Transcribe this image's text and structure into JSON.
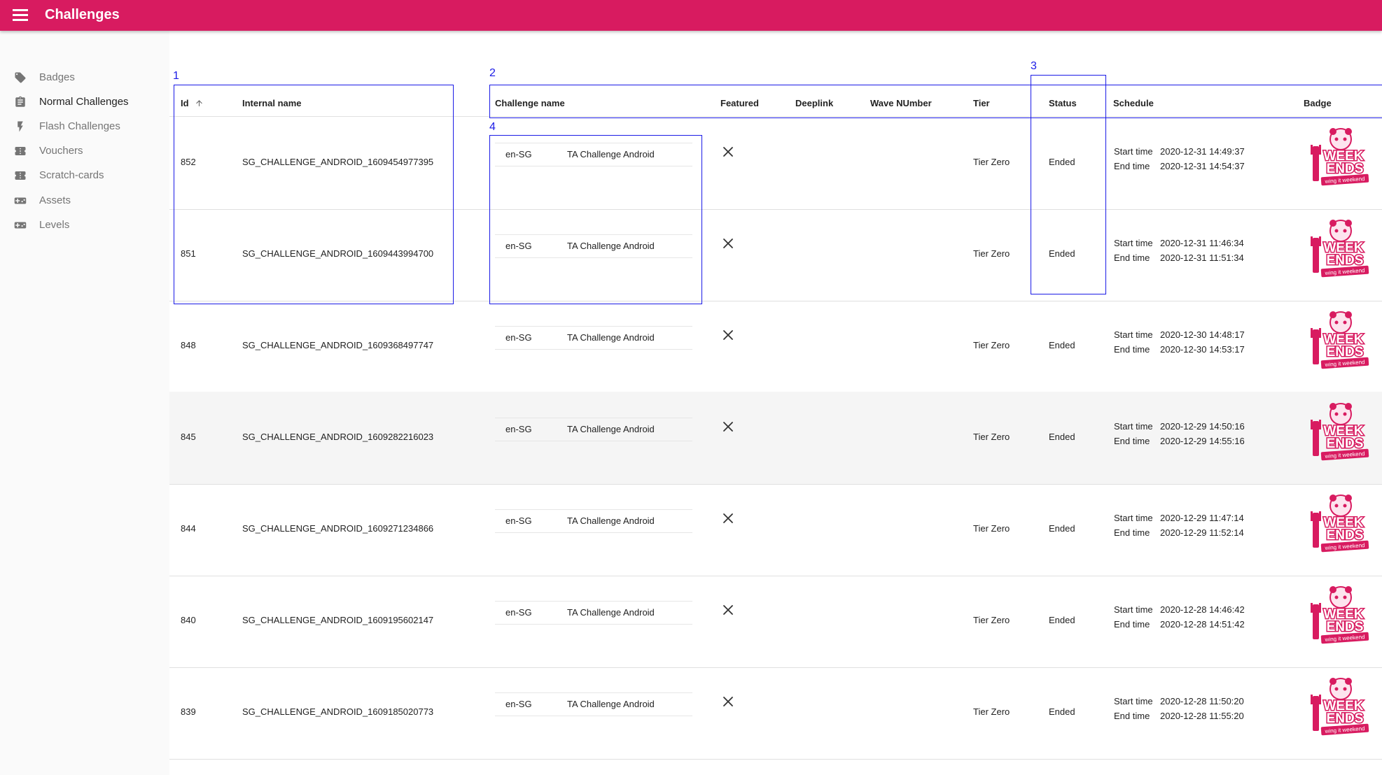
{
  "app": {
    "title": "Challenges"
  },
  "sidebar": {
    "items": [
      {
        "label": "Badges",
        "icon": "tag-icon"
      },
      {
        "label": "Normal Challenges",
        "icon": "clipboard-icon",
        "active": true
      },
      {
        "label": "Flash Challenges",
        "icon": "flash-icon"
      },
      {
        "label": "Vouchers",
        "icon": "ticket-icon"
      },
      {
        "label": "Scratch-cards",
        "icon": "ticket-icon"
      },
      {
        "label": "Assets",
        "icon": "gamepad-icon"
      },
      {
        "label": "Levels",
        "icon": "gamepad-icon"
      }
    ]
  },
  "table": {
    "sort_icon": "arrow-up-icon",
    "columns": {
      "id": "Id",
      "internal_name": "Internal name",
      "challenge_name": "Challenge name",
      "featured": "Featured",
      "deeplink": "Deeplink",
      "wave_number": "Wave NUmber",
      "tier": "Tier",
      "status": "Status",
      "schedule": "Schedule",
      "badge": "Badge"
    },
    "start_label": "Start time",
    "end_label": "End time",
    "rows": [
      {
        "id": "852",
        "internal_name": "SG_CHALLENGE_ANDROID_1609454977395",
        "locale": "en-SG",
        "challenge_name": "TA Challenge Android",
        "featured": false,
        "tier": "Tier Zero",
        "status": "Ended",
        "start": "2020-12-31 14:49:37",
        "end": "2020-12-31 14:54:37"
      },
      {
        "id": "851",
        "internal_name": "SG_CHALLENGE_ANDROID_1609443994700",
        "locale": "en-SG",
        "challenge_name": "TA Challenge Android",
        "featured": false,
        "tier": "Tier Zero",
        "status": "Ended",
        "start": "2020-12-31 11:46:34",
        "end": "2020-12-31 11:51:34"
      },
      {
        "id": "848",
        "internal_name": "SG_CHALLENGE_ANDROID_1609368497747",
        "locale": "en-SG",
        "challenge_name": "TA Challenge Android",
        "featured": false,
        "tier": "Tier Zero",
        "status": "Ended",
        "start": "2020-12-30 14:48:17",
        "end": "2020-12-30 14:53:17"
      },
      {
        "id": "845",
        "internal_name": "SG_CHALLENGE_ANDROID_1609282216023",
        "locale": "en-SG",
        "challenge_name": "TA Challenge Android",
        "featured": false,
        "tier": "Tier Zero",
        "status": "Ended",
        "start": "2020-12-29 14:50:16",
        "end": "2020-12-29 14:55:16"
      },
      {
        "id": "844",
        "internal_name": "SG_CHALLENGE_ANDROID_1609271234866",
        "locale": "en-SG",
        "challenge_name": "TA Challenge Android",
        "featured": false,
        "tier": "Tier Zero",
        "status": "Ended",
        "start": "2020-12-29 11:47:14",
        "end": "2020-12-29 11:52:14"
      },
      {
        "id": "840",
        "internal_name": "SG_CHALLENGE_ANDROID_1609195602147",
        "locale": "en-SG",
        "challenge_name": "TA Challenge Android",
        "featured": false,
        "tier": "Tier Zero",
        "status": "Ended",
        "start": "2020-12-28 14:46:42",
        "end": "2020-12-28 14:51:42"
      },
      {
        "id": "839",
        "internal_name": "SG_CHALLENGE_ANDROID_1609185020773",
        "locale": "en-SG",
        "challenge_name": "TA Challenge Android",
        "featured": false,
        "tier": "Tier Zero",
        "status": "Ended",
        "start": "2020-12-28 11:50:20",
        "end": "2020-12-28 11:55:20"
      }
    ]
  },
  "badge": {
    "line1": "WEEK",
    "line2": "ENDS",
    "tagline": "wing it weekend",
    "color": "#d81b60"
  },
  "annotations": {
    "box1": "1",
    "box2": "2",
    "box3": "3",
    "box4": "4",
    "color": "#1a1ae6"
  },
  "colors": {
    "appbar": "#d81b60",
    "text": "#222222",
    "muted": "#757575"
  }
}
